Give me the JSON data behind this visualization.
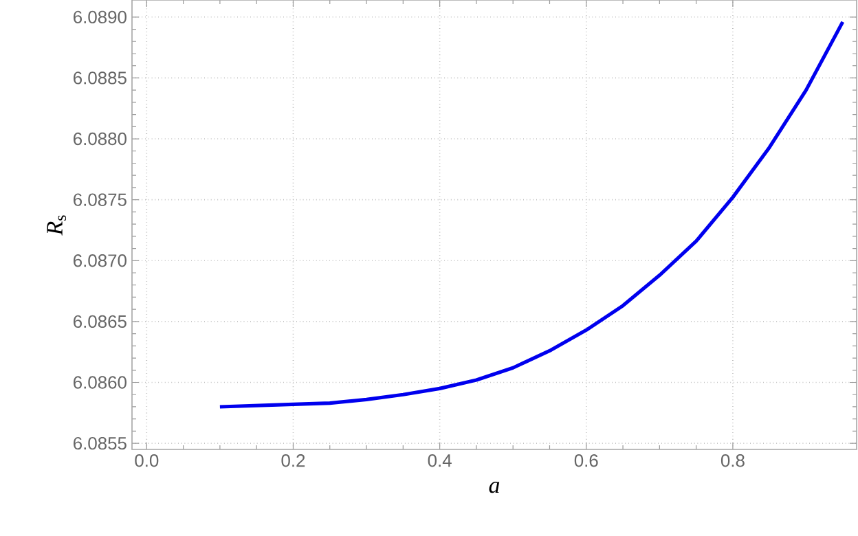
{
  "chart_data": {
    "type": "line",
    "xlabel": "*a*",
    "ylabel": "*R*$_{s}$",
    "x": [
      0.1,
      0.15,
      0.2,
      0.25,
      0.3,
      0.35,
      0.4,
      0.45,
      0.5,
      0.55,
      0.6,
      0.65,
      0.7,
      0.75,
      0.8,
      0.85,
      0.9,
      0.95
    ],
    "series": [
      {
        "color": "#0000ee",
        "values": [
          6.0858,
          6.08581,
          6.08582,
          6.08583,
          6.08586,
          6.0859,
          6.08595,
          6.08602,
          6.08612,
          6.08626,
          6.08643,
          6.08663,
          6.08688,
          6.08716,
          6.08752,
          6.08793,
          6.0884,
          6.08896
        ]
      }
    ],
    "xlim": [
      -0.02,
      0.969
    ],
    "ylim": [
      6.08545,
      6.08914
    ],
    "xticks": [
      {
        "value": 0,
        "label": "0.0"
      },
      {
        "value": 0.2,
        "label": "0.2"
      },
      {
        "value": 0.4,
        "label": "0.4"
      },
      {
        "value": 0.6,
        "label": "0.6"
      },
      {
        "value": 0.8,
        "label": "0.8"
      }
    ],
    "yticks": [
      {
        "value": 6.0855,
        "label": "6.0855"
      },
      {
        "value": 6.086,
        "label": "6.0860"
      },
      {
        "value": 6.0865,
        "label": "6.0865"
      },
      {
        "value": 6.087,
        "label": "6.0870"
      },
      {
        "value": 6.0875,
        "label": "6.0875"
      },
      {
        "value": 6.088,
        "label": "6.0880"
      },
      {
        "value": 6.0885,
        "label": "6.0885"
      },
      {
        "value": 6.089,
        "label": "6.0890"
      }
    ],
    "grid": true,
    "marker": "none",
    "line_style": "solid"
  }
}
